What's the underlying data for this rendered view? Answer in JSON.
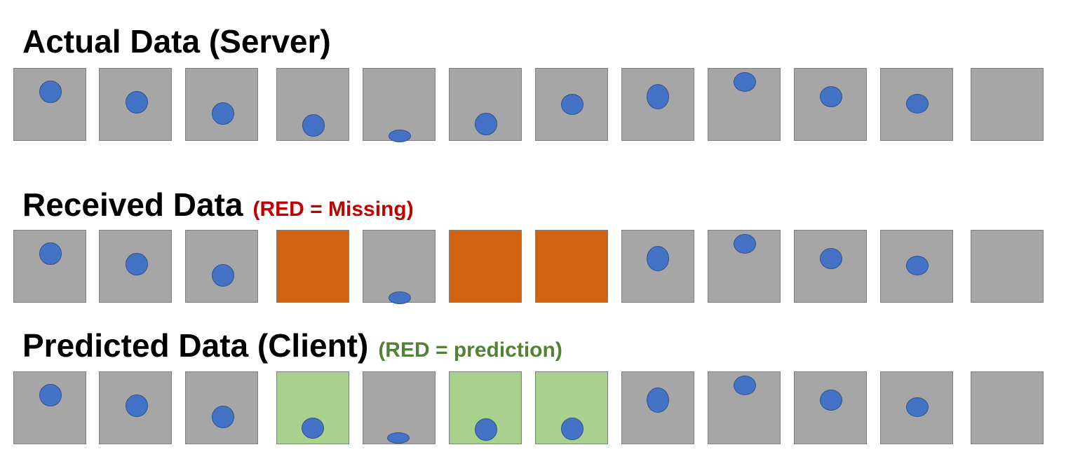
{
  "colors": {
    "frame": "#a6a6a6",
    "frame_border": "#7f7f7f",
    "missing": "#d06210",
    "predicted": "#a9d18e",
    "ball": "#4472c4",
    "ball_border": "#2f528f",
    "note_missing": "#c00000",
    "note_prediction": "#548235"
  },
  "rows": [
    {
      "title": "Actual Data (Server)",
      "note": "",
      "frames": [
        {
          "state": "normal",
          "ball": "c1"
        },
        {
          "state": "normal",
          "ball": "c2"
        },
        {
          "state": "normal",
          "ball": "c3"
        },
        {
          "state": "normal",
          "ball": "c4"
        },
        {
          "state": "normal",
          "ball": "c5"
        },
        {
          "state": "normal",
          "ball": "c6"
        },
        {
          "state": "normal",
          "ball": "c7"
        },
        {
          "state": "normal",
          "ball": "c8"
        },
        {
          "state": "normal",
          "ball": "c9"
        },
        {
          "state": "normal",
          "ball": "c10"
        },
        {
          "state": "normal",
          "ball": "c11"
        },
        {
          "state": "normal",
          "ball": "none"
        }
      ]
    },
    {
      "title": "Received Data",
      "note": "(RED = Missing)",
      "frames": [
        {
          "state": "normal",
          "ball": "c1"
        },
        {
          "state": "normal",
          "ball": "c2"
        },
        {
          "state": "normal",
          "ball": "c3"
        },
        {
          "state": "missing",
          "ball": "none"
        },
        {
          "state": "normal",
          "ball": "c5"
        },
        {
          "state": "missing",
          "ball": "none"
        },
        {
          "state": "missing",
          "ball": "none"
        },
        {
          "state": "normal",
          "ball": "c8"
        },
        {
          "state": "normal",
          "ball": "c9"
        },
        {
          "state": "normal",
          "ball": "c10"
        },
        {
          "state": "normal",
          "ball": "c11"
        },
        {
          "state": "normal",
          "ball": "none"
        }
      ]
    },
    {
      "title": "Predicted Data (Client)",
      "note": "(RED = prediction)",
      "frames": [
        {
          "state": "normal",
          "ball": "c1"
        },
        {
          "state": "normal",
          "ball": "c2"
        },
        {
          "state": "normal",
          "ball": "c3"
        },
        {
          "state": "predicted",
          "ball": "p4"
        },
        {
          "state": "normal",
          "ball": "p5"
        },
        {
          "state": "predicted",
          "ball": "p6"
        },
        {
          "state": "predicted",
          "ball": "p7"
        },
        {
          "state": "normal",
          "ball": "c8"
        },
        {
          "state": "normal",
          "ball": "c9"
        },
        {
          "state": "normal",
          "ball": "c10"
        },
        {
          "state": "normal",
          "ball": "c11"
        },
        {
          "state": "normal",
          "ball": "none"
        }
      ]
    }
  ]
}
